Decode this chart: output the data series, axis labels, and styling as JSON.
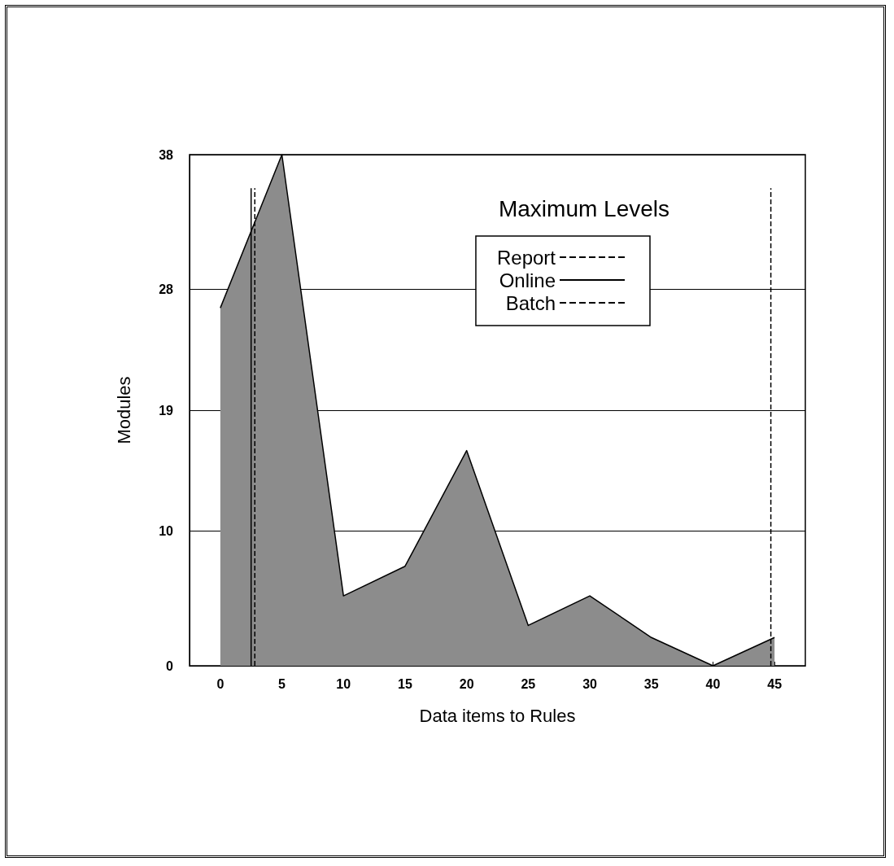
{
  "chart_data": {
    "type": "area",
    "xlabel": "Data items to Rules",
    "ylabel": "Modules",
    "legend_title": "Maximum Levels",
    "x": [
      0,
      5,
      10,
      15,
      20,
      25,
      30,
      35,
      40,
      45
    ],
    "series": [
      {
        "color": "#8c8c8c",
        "values": [
          26.6,
          38,
          5.2,
          7.4,
          16.0,
          3.0,
          5.2,
          2.1,
          0,
          2.1
        ]
      },
      {
        "name": "Report",
        "type": "line",
        "color": "#000000",
        "line_style": "dashed",
        "x": [
          2.8,
          2.8
        ],
        "values": [
          0,
          35.5
        ]
      },
      {
        "name": "Online",
        "type": "line",
        "color": "#000000",
        "line_style": "solid",
        "x": [
          2.5,
          2.5
        ],
        "values": [
          0,
          35.5
        ]
      },
      {
        "name": "Batch",
        "type": "line",
        "color": "#000000",
        "line_style": "dashed",
        "x": [
          44.7,
          44.7
        ],
        "values": [
          0,
          35.5
        ]
      }
    ],
    "xlim": [
      -2.5,
      47.5
    ],
    "xticks": [
      0,
      5,
      10,
      15,
      20,
      25,
      30,
      35,
      40,
      45
    ],
    "ylim": [
      0,
      38
    ],
    "yticks": [
      0,
      10,
      19,
      28,
      38
    ],
    "grid": "y",
    "legend": "top right",
    "marker": "none"
  }
}
